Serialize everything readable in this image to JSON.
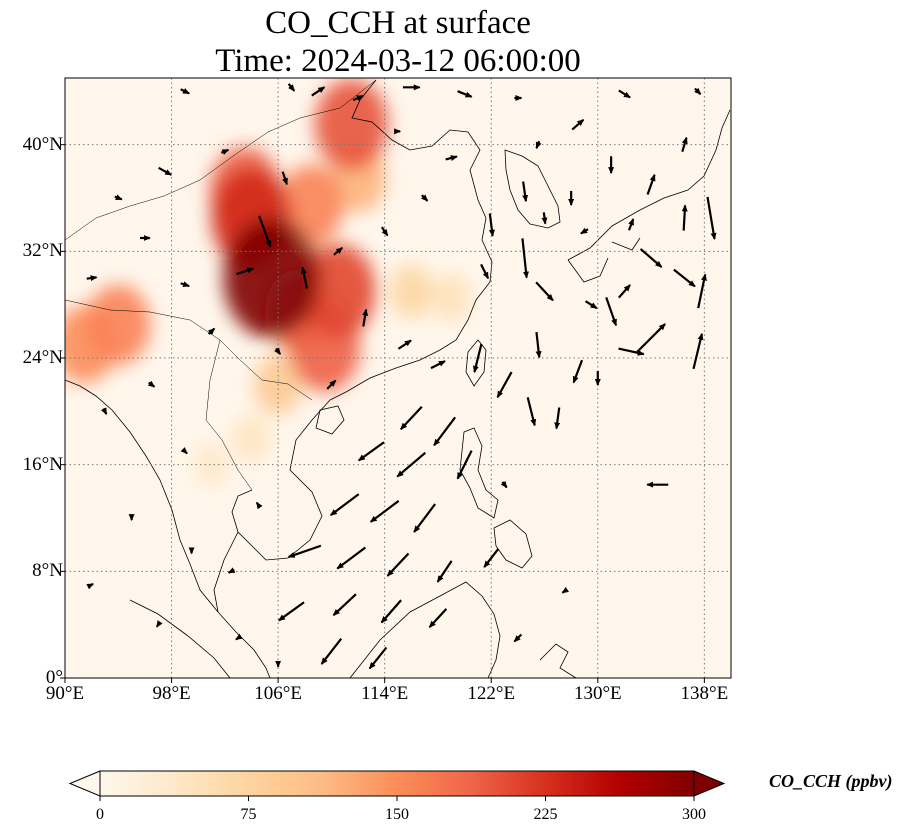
{
  "title": {
    "line1": "CO_CCH at surface",
    "line2": "Time: 2024-03-12 06:00:00"
  },
  "map": {
    "lon_range": [
      90,
      140
    ],
    "lat_range": [
      0,
      45
    ],
    "gridlines": "dotted",
    "x_ticks": [
      {
        "value": 90,
        "label": "90°E"
      },
      {
        "value": 98,
        "label": "98°E"
      },
      {
        "value": 106,
        "label": "106°E"
      },
      {
        "value": 114,
        "label": "114°E"
      },
      {
        "value": 122,
        "label": "122°E"
      },
      {
        "value": 130,
        "label": "130°E"
      },
      {
        "value": 138,
        "label": "138°E"
      }
    ],
    "y_ticks": [
      {
        "value": 0,
        "label": "0°"
      },
      {
        "value": 8,
        "label": "8°N"
      },
      {
        "value": 16,
        "label": "16°N"
      },
      {
        "value": 24,
        "label": "24°N"
      },
      {
        "value": 32,
        "label": "32°N"
      },
      {
        "value": 40,
        "label": "40°N"
      }
    ],
    "field": "CO_CCH",
    "hotspots": [
      {
        "lon": 105.5,
        "lat": 30.0,
        "value": 300
      },
      {
        "lon": 104.0,
        "lat": 34.5,
        "value": 230
      },
      {
        "lon": 103.5,
        "lat": 36.5,
        "value": 190
      },
      {
        "lon": 110.5,
        "lat": 29.0,
        "value": 210
      },
      {
        "lon": 107.5,
        "lat": 27.5,
        "value": 170
      },
      {
        "lon": 109.5,
        "lat": 24.8,
        "value": 190
      },
      {
        "lon": 111.5,
        "lat": 41.5,
        "value": 200
      },
      {
        "lon": 108.5,
        "lat": 35.5,
        "value": 160
      },
      {
        "lon": 94.0,
        "lat": 26.5,
        "value": 160
      },
      {
        "lon": 91.5,
        "lat": 25.0,
        "value": 150
      },
      {
        "lon": 112.0,
        "lat": 37.5,
        "value": 120
      },
      {
        "lon": 106.0,
        "lat": 22.0,
        "value": 90
      },
      {
        "lon": 116.0,
        "lat": 29.0,
        "value": 70
      },
      {
        "lon": 119.0,
        "lat": 28.5,
        "value": 50
      },
      {
        "lon": 104.0,
        "lat": 18.0,
        "value": 45
      },
      {
        "lon": 101.0,
        "lat": 16.0,
        "value": 35
      }
    ],
    "wind_vectors": [
      {
        "lon": 99.0,
        "lat": 44.0,
        "u": 0.6,
        "v": -0.3
      },
      {
        "lon": 107.0,
        "lat": 44.3,
        "u": 0.4,
        "v": -0.5
      },
      {
        "lon": 109.0,
        "lat": 44.0,
        "u": 0.9,
        "v": 0.6
      },
      {
        "lon": 112.0,
        "lat": 43.5,
        "u": 0.7,
        "v": 0.3
      },
      {
        "lon": 116.0,
        "lat": 44.3,
        "u": 1.2,
        "v": 0.0
      },
      {
        "lon": 120.0,
        "lat": 43.8,
        "u": 1.0,
        "v": -0.4
      },
      {
        "lon": 124.0,
        "lat": 43.5,
        "u": 0.5,
        "v": 0.0
      },
      {
        "lon": 132.0,
        "lat": 43.8,
        "u": 0.8,
        "v": -0.5
      },
      {
        "lon": 137.5,
        "lat": 44.0,
        "u": 0.4,
        "v": -0.4
      },
      {
        "lon": 128.5,
        "lat": 41.5,
        "u": 0.8,
        "v": 0.7
      },
      {
        "lon": 136.5,
        "lat": 40.0,
        "u": 0.3,
        "v": 1.0
      },
      {
        "lon": 131.0,
        "lat": 38.5,
        "u": 0.0,
        "v": -1.2
      },
      {
        "lon": 134.0,
        "lat": 37.0,
        "u": 0.5,
        "v": 1.4
      },
      {
        "lon": 128.0,
        "lat": 36.0,
        "u": 0.0,
        "v": -1.0
      },
      {
        "lon": 124.5,
        "lat": 36.5,
        "u": 0.2,
        "v": -1.4
      },
      {
        "lon": 126.0,
        "lat": 34.5,
        "u": 0.1,
        "v": -0.8
      },
      {
        "lon": 122.0,
        "lat": 34.0,
        "u": 0.2,
        "v": -1.6
      },
      {
        "lon": 129.0,
        "lat": 33.5,
        "u": -0.5,
        "v": -0.3
      },
      {
        "lon": 132.5,
        "lat": 34.0,
        "u": 0.3,
        "v": 0.8
      },
      {
        "lon": 136.5,
        "lat": 34.5,
        "u": 0.1,
        "v": 1.8
      },
      {
        "lon": 138.5,
        "lat": 34.5,
        "u": 0.5,
        "v": -3.0
      },
      {
        "lon": 121.5,
        "lat": 30.5,
        "u": 0.5,
        "v": -1.0
      },
      {
        "lon": 124.5,
        "lat": 31.5,
        "u": 0.3,
        "v": -2.8
      },
      {
        "lon": 126.0,
        "lat": 29.0,
        "u": 1.2,
        "v": -1.3
      },
      {
        "lon": 129.5,
        "lat": 28.0,
        "u": 0.8,
        "v": -0.5
      },
      {
        "lon": 132.0,
        "lat": 29.0,
        "u": 0.8,
        "v": 0.9
      },
      {
        "lon": 134.0,
        "lat": 31.5,
        "u": 1.5,
        "v": -1.3
      },
      {
        "lon": 136.5,
        "lat": 30.0,
        "u": 1.5,
        "v": -1.2
      },
      {
        "lon": 137.8,
        "lat": 29.0,
        "u": 0.5,
        "v": 2.4
      },
      {
        "lon": 134.0,
        "lat": 25.5,
        "u": 2.0,
        "v": 2.0
      },
      {
        "lon": 137.5,
        "lat": 24.5,
        "u": 0.6,
        "v": 2.5
      },
      {
        "lon": 131.0,
        "lat": 27.5,
        "u": 0.7,
        "v": -2.0
      },
      {
        "lon": 132.5,
        "lat": 24.5,
        "u": 1.8,
        "v": -0.4
      },
      {
        "lon": 130.0,
        "lat": 22.5,
        "u": 0.0,
        "v": -1.0
      },
      {
        "lon": 128.5,
        "lat": 23.0,
        "u": -0.6,
        "v": -1.6
      },
      {
        "lon": 125.5,
        "lat": 25.0,
        "u": 0.2,
        "v": -1.8
      },
      {
        "lon": 121.0,
        "lat": 24.0,
        "u": -0.5,
        "v": -2.0
      },
      {
        "lon": 123.0,
        "lat": 22.0,
        "u": -1.0,
        "v": -1.8
      },
      {
        "lon": 125.0,
        "lat": 20.0,
        "u": 0.5,
        "v": -2.0
      },
      {
        "lon": 127.0,
        "lat": 19.5,
        "u": -0.2,
        "v": -1.5
      },
      {
        "lon": 118.5,
        "lat": 18.5,
        "u": -1.5,
        "v": -2.0
      },
      {
        "lon": 116.0,
        "lat": 19.5,
        "u": -1.5,
        "v": -1.6
      },
      {
        "lon": 113.0,
        "lat": 17.0,
        "u": -1.8,
        "v": -1.3
      },
      {
        "lon": 116.0,
        "lat": 16.0,
        "u": -2.0,
        "v": -1.7
      },
      {
        "lon": 120.0,
        "lat": 16.0,
        "u": -1.0,
        "v": -2.0
      },
      {
        "lon": 111.0,
        "lat": 13.0,
        "u": -2.0,
        "v": -1.5
      },
      {
        "lon": 114.0,
        "lat": 12.5,
        "u": -2.0,
        "v": -1.5
      },
      {
        "lon": 117.0,
        "lat": 12.0,
        "u": -1.5,
        "v": -2.0
      },
      {
        "lon": 108.0,
        "lat": 9.5,
        "u": -2.3,
        "v": -0.8
      },
      {
        "lon": 111.5,
        "lat": 9.0,
        "u": -2.0,
        "v": -1.5
      },
      {
        "lon": 115.0,
        "lat": 8.5,
        "u": -1.5,
        "v": -1.6
      },
      {
        "lon": 118.5,
        "lat": 8.0,
        "u": -1.0,
        "v": -1.5
      },
      {
        "lon": 122.0,
        "lat": 9.0,
        "u": -1.0,
        "v": -1.3
      },
      {
        "lon": 107.0,
        "lat": 5.0,
        "u": -1.8,
        "v": -1.3
      },
      {
        "lon": 111.0,
        "lat": 5.5,
        "u": -1.6,
        "v": -1.5
      },
      {
        "lon": 114.5,
        "lat": 5.0,
        "u": -1.4,
        "v": -1.6
      },
      {
        "lon": 118.0,
        "lat": 4.5,
        "u": -1.2,
        "v": -1.3
      },
      {
        "lon": 110.0,
        "lat": 2.0,
        "u": -1.4,
        "v": -1.8
      },
      {
        "lon": 113.5,
        "lat": 1.5,
        "u": -1.2,
        "v": -1.5
      },
      {
        "lon": 134.5,
        "lat": 14.5,
        "u": -1.5,
        "v": 0.0
      },
      {
        "lon": 123.0,
        "lat": 14.5,
        "u": 0.3,
        "v": -0.4
      },
      {
        "lon": 105.0,
        "lat": 33.5,
        "u": 0.8,
        "v": -2.2
      },
      {
        "lon": 103.5,
        "lat": 30.5,
        "u": 1.2,
        "v": 0.4
      },
      {
        "lon": 108.0,
        "lat": 30.0,
        "u": -0.3,
        "v": 1.5
      },
      {
        "lon": 110.5,
        "lat": 32.0,
        "u": 0.6,
        "v": 0.5
      },
      {
        "lon": 114.0,
        "lat": 33.5,
        "u": 0.4,
        "v": -0.6
      },
      {
        "lon": 117.0,
        "lat": 36.0,
        "u": 0.4,
        "v": -0.4
      },
      {
        "lon": 112.5,
        "lat": 27.0,
        "u": 0.2,
        "v": 1.2
      },
      {
        "lon": 115.5,
        "lat": 25.0,
        "u": 0.9,
        "v": 0.6
      },
      {
        "lon": 118.0,
        "lat": 23.5,
        "u": 1.0,
        "v": 0.5
      },
      {
        "lon": 110.0,
        "lat": 22.0,
        "u": 0.6,
        "v": 0.6
      },
      {
        "lon": 106.0,
        "lat": 24.5,
        "u": 0.3,
        "v": -0.4
      },
      {
        "lon": 101.0,
        "lat": 26.0,
        "u": 0.4,
        "v": 0.4
      },
      {
        "lon": 99.0,
        "lat": 29.5,
        "u": 0.6,
        "v": -0.2
      },
      {
        "lon": 96.0,
        "lat": 33.0,
        "u": 0.7,
        "v": 0.0
      },
      {
        "lon": 94.0,
        "lat": 36.0,
        "u": 0.5,
        "v": -0.2
      },
      {
        "lon": 97.5,
        "lat": 38.0,
        "u": 0.9,
        "v": -0.5
      },
      {
        "lon": 102.0,
        "lat": 39.5,
        "u": 0.5,
        "v": 0.2
      },
      {
        "lon": 106.5,
        "lat": 37.5,
        "u": 0.3,
        "v": -0.9
      },
      {
        "lon": 92.0,
        "lat": 30.0,
        "u": 0.7,
        "v": 0.1
      },
      {
        "lon": 96.5,
        "lat": 22.0,
        "u": 0.4,
        "v": -0.3
      },
      {
        "lon": 93.0,
        "lat": 20.0,
        "u": 0.2,
        "v": -0.4
      },
      {
        "lon": 99.0,
        "lat": 17.0,
        "u": 0.3,
        "v": -0.3
      },
      {
        "lon": 95.0,
        "lat": 12.0,
        "u": 0.0,
        "v": -0.3
      },
      {
        "lon": 92.0,
        "lat": 7.0,
        "u": 0.2,
        "v": 0.1
      },
      {
        "lon": 97.0,
        "lat": 4.0,
        "u": -0.2,
        "v": -0.3
      },
      {
        "lon": 102.5,
        "lat": 8.0,
        "u": -0.4,
        "v": -0.2
      },
      {
        "lon": 99.5,
        "lat": 9.5,
        "u": 0.0,
        "v": -0.3
      },
      {
        "lon": 104.5,
        "lat": 13.0,
        "u": -0.2,
        "v": 0.3
      },
      {
        "lon": 106.0,
        "lat": 1.0,
        "u": 0.0,
        "v": -0.3
      },
      {
        "lon": 103.0,
        "lat": 3.0,
        "u": -0.3,
        "v": -0.2
      },
      {
        "lon": 125.5,
        "lat": 40.0,
        "u": -0.2,
        "v": -0.5
      },
      {
        "lon": 119.0,
        "lat": 39.0,
        "u": 0.8,
        "v": 0.2
      },
      {
        "lon": 115.0,
        "lat": 41.0,
        "u": 0.3,
        "v": 0.0
      },
      {
        "lon": 124.0,
        "lat": 3.0,
        "u": -0.5,
        "v": -0.5
      },
      {
        "lon": 127.5,
        "lat": 6.5,
        "u": -0.3,
        "v": -0.2
      }
    ]
  },
  "colorbar": {
    "title": "CO_CCH (ppbv)",
    "min": 0,
    "max": 300,
    "extend": "both",
    "colormap": "OrRd",
    "ticks": [
      {
        "value": 0,
        "label": "0"
      },
      {
        "value": 75,
        "label": "75"
      },
      {
        "value": 150,
        "label": "150"
      },
      {
        "value": 225,
        "label": "225"
      },
      {
        "value": 300,
        "label": "300"
      }
    ],
    "stops": [
      "#fff7ec",
      "#fee8c8",
      "#fdd49e",
      "#fdbb84",
      "#fc8d59",
      "#ef6548",
      "#d7301f",
      "#b30000",
      "#7f0000"
    ]
  }
}
